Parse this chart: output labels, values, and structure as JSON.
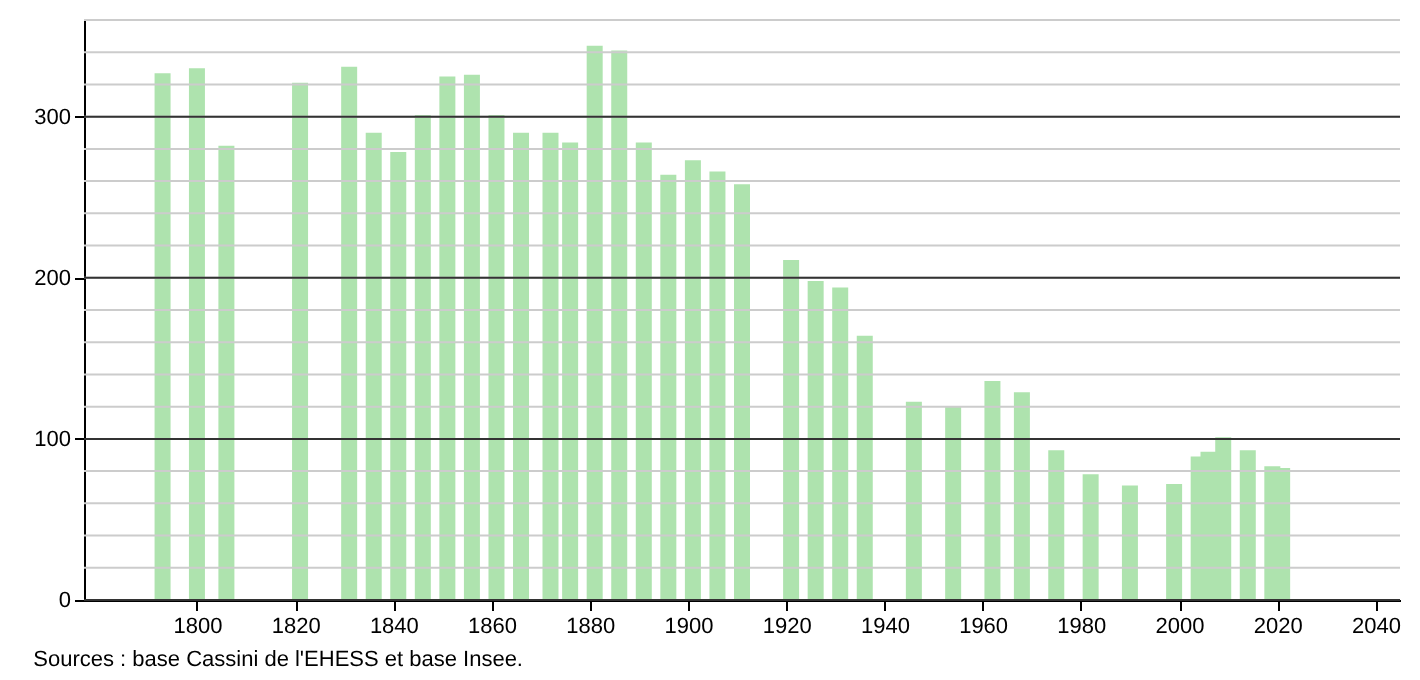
{
  "chart_data": {
    "type": "bar",
    "annotations": [
      "Sources : base Cassini de l'EHESS et base Insee."
    ],
    "x": [
      1793,
      1800,
      1806,
      1821,
      1831,
      1836,
      1841,
      1846,
      1851,
      1856,
      1861,
      1866,
      1872,
      1876,
      1881,
      1886,
      1891,
      1896,
      1901,
      1906,
      1911,
      1921,
      1926,
      1931,
      1936,
      1946,
      1954,
      1962,
      1968,
      1975,
      1982,
      1990,
      1999,
      2004,
      2006,
      2009,
      2014,
      2019,
      2021
    ],
    "values": [
      327,
      330,
      282,
      321,
      331,
      290,
      278,
      301,
      325,
      326,
      301,
      290,
      290,
      284,
      344,
      341,
      284,
      264,
      273,
      266,
      258,
      211,
      198,
      194,
      164,
      123,
      120,
      136,
      129,
      93,
      78,
      71,
      72,
      89,
      92,
      101,
      93,
      83,
      82
    ],
    "color": "#aee3ae",
    "xlim": [
      1777,
      2045
    ],
    "xticks": [
      1800,
      1820,
      1840,
      1860,
      1880,
      1900,
      1920,
      1940,
      1960,
      1980,
      2000,
      2020,
      2040
    ],
    "ylim": [
      0,
      360
    ],
    "yticks": [
      0,
      100,
      200,
      300
    ],
    "grid": "y"
  }
}
